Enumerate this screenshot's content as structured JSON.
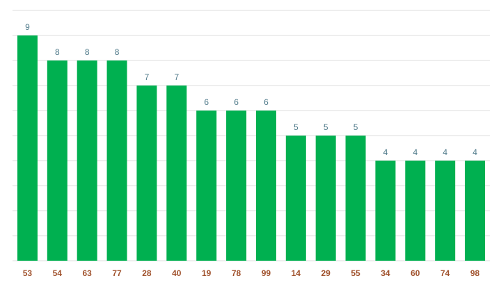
{
  "chart_data": {
    "type": "bar",
    "categories": [
      "53",
      "54",
      "63",
      "77",
      "28",
      "40",
      "19",
      "78",
      "99",
      "14",
      "29",
      "55",
      "34",
      "60",
      "74",
      "98"
    ],
    "values": [
      9,
      8,
      8,
      8,
      7,
      7,
      6,
      6,
      6,
      5,
      5,
      5,
      4,
      4,
      4,
      4
    ],
    "title": "",
    "xlabel": "",
    "ylabel": "",
    "ylim": [
      0,
      10
    ],
    "grid": true,
    "legend": "none"
  },
  "colors": {
    "bar": "#00b050",
    "value_label": "#4f7a8a",
    "tick_label": "#a0522d",
    "grid": "#dddddd",
    "background": "#ffffff"
  }
}
